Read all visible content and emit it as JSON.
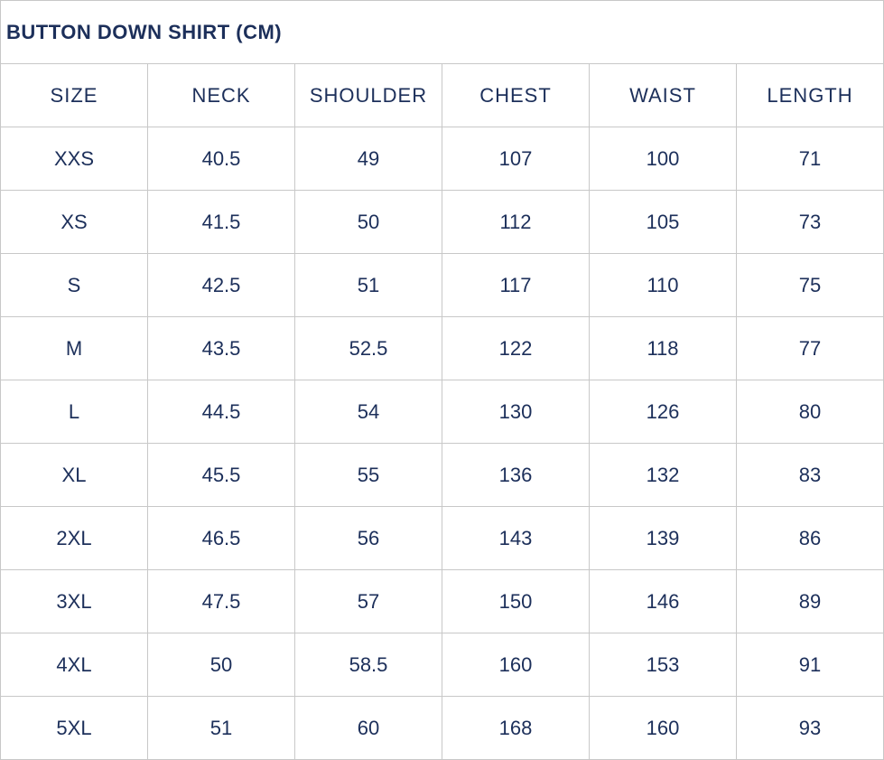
{
  "title": "BUTTON DOWN SHIRT (CM)",
  "headers": [
    "SIZE",
    "NECK",
    "SHOULDER",
    "CHEST",
    "WAIST",
    "LENGTH"
  ],
  "rows": [
    [
      "XXS",
      "40.5",
      "49",
      "107",
      "100",
      "71"
    ],
    [
      "XS",
      "41.5",
      "50",
      "112",
      "105",
      "73"
    ],
    [
      "S",
      "42.5",
      "51",
      "117",
      "110",
      "75"
    ],
    [
      "M",
      "43.5",
      "52.5",
      "122",
      "118",
      "77"
    ],
    [
      "L",
      "44.5",
      "54",
      "130",
      "126",
      "80"
    ],
    [
      "XL",
      "45.5",
      "55",
      "136",
      "132",
      "83"
    ],
    [
      "2XL",
      "46.5",
      "56",
      "143",
      "139",
      "86"
    ],
    [
      "3XL",
      "47.5",
      "57",
      "150",
      "146",
      "89"
    ],
    [
      "4XL",
      "50",
      "58.5",
      "160",
      "153",
      "91"
    ],
    [
      "5XL",
      "51",
      "60",
      "168",
      "160",
      "93"
    ]
  ],
  "colors": {
    "text": "#1c2f5a",
    "border": "#c8c8c8"
  }
}
